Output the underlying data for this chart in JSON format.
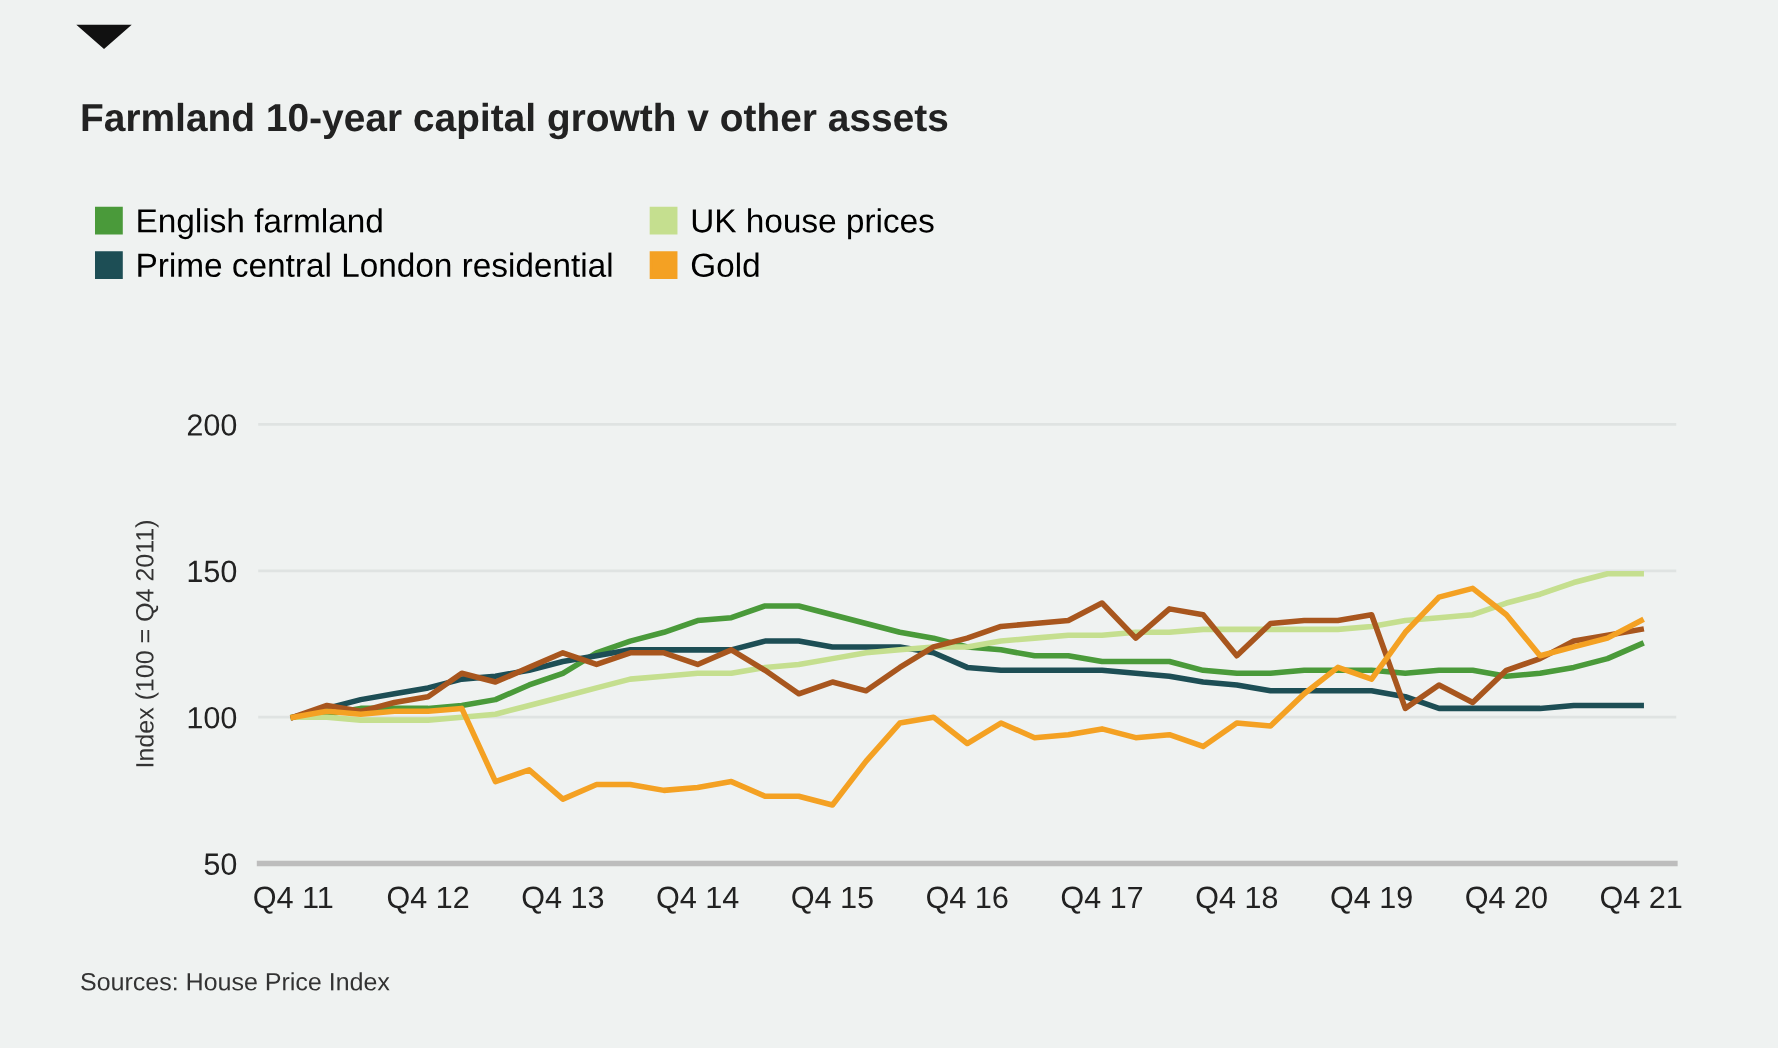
{
  "chart_data": {
    "type": "line",
    "title": "Farmland 10-year capital growth v other assets",
    "ylabel": "Index (100 = Q4 2011)",
    "categories": [
      "Q4 11",
      null,
      null,
      null,
      "Q4 12",
      null,
      null,
      null,
      "Q4 13",
      null,
      null,
      null,
      "Q4 14",
      null,
      null,
      null,
      "Q4 15",
      null,
      null,
      null,
      "Q4 16",
      null,
      null,
      null,
      "Q4 17",
      null,
      null,
      null,
      "Q4 18",
      null,
      null,
      null,
      "Q4 19",
      null,
      null,
      null,
      "Q4 20",
      null,
      null,
      null,
      "Q4 21"
    ],
    "series": [
      {
        "name": "English farmland",
        "color": "#4a9a3a",
        "values": [
          100,
          101,
          103,
          103,
          103,
          104,
          106,
          111,
          115,
          122,
          126,
          129,
          133,
          134,
          138,
          138,
          135,
          132,
          129,
          127,
          124,
          123,
          121,
          121,
          119,
          119,
          119,
          116,
          115,
          115,
          116,
          116,
          116,
          115,
          116,
          116,
          114,
          115,
          117,
          120,
          125
        ]
      },
      {
        "name": "Prime central London residential",
        "color": "#1d4e55",
        "values": [
          100,
          103,
          106,
          108,
          110,
          113,
          114,
          116,
          119,
          121,
          123,
          123,
          123,
          123,
          126,
          126,
          124,
          124,
          124,
          122,
          117,
          116,
          116,
          116,
          116,
          115,
          114,
          112,
          111,
          109,
          109,
          109,
          109,
          107,
          103,
          103,
          103,
          103,
          104,
          104,
          104
        ]
      },
      {
        "name": "UK house prices",
        "color": "#c5df8f",
        "values": [
          100,
          100,
          99,
          99,
          99,
          100,
          101,
          104,
          107,
          110,
          113,
          114,
          115,
          115,
          117,
          118,
          120,
          122,
          123,
          124,
          124,
          126,
          127,
          128,
          128,
          129,
          129,
          130,
          130,
          130,
          130,
          130,
          131,
          133,
          134,
          135,
          139,
          142,
          146,
          149,
          149
        ]
      },
      {
        "color": "#a8561e",
        "values": [
          100,
          104,
          102,
          105,
          107,
          115,
          112,
          117,
          122,
          118,
          122,
          122,
          118,
          123,
          116,
          108,
          112,
          109,
          117,
          124,
          127,
          131,
          132,
          133,
          139,
          127,
          137,
          135,
          121,
          132,
          133,
          133,
          135,
          103,
          111,
          105,
          116,
          120,
          126,
          128,
          130
        ]
      },
      {
        "name": "Gold",
        "color": "#f4a123",
        "values": [
          100,
          102,
          101,
          102,
          102,
          103,
          78,
          82,
          72,
          77,
          77,
          75,
          76,
          78,
          73,
          73,
          70,
          85,
          98,
          100,
          91,
          98,
          93,
          94,
          96,
          93,
          94,
          90,
          98,
          97,
          108,
          117,
          113,
          129,
          141,
          144,
          135,
          121,
          124,
          127,
          133
        ]
      }
    ],
    "ylim": [
      50,
      200
    ],
    "yticks": [
      50,
      100,
      150,
      200
    ],
    "grid": "y",
    "legend": "top",
    "marker": "none",
    "line_style": "solid",
    "annotations": [
      "Sources: House Price Index"
    ]
  }
}
